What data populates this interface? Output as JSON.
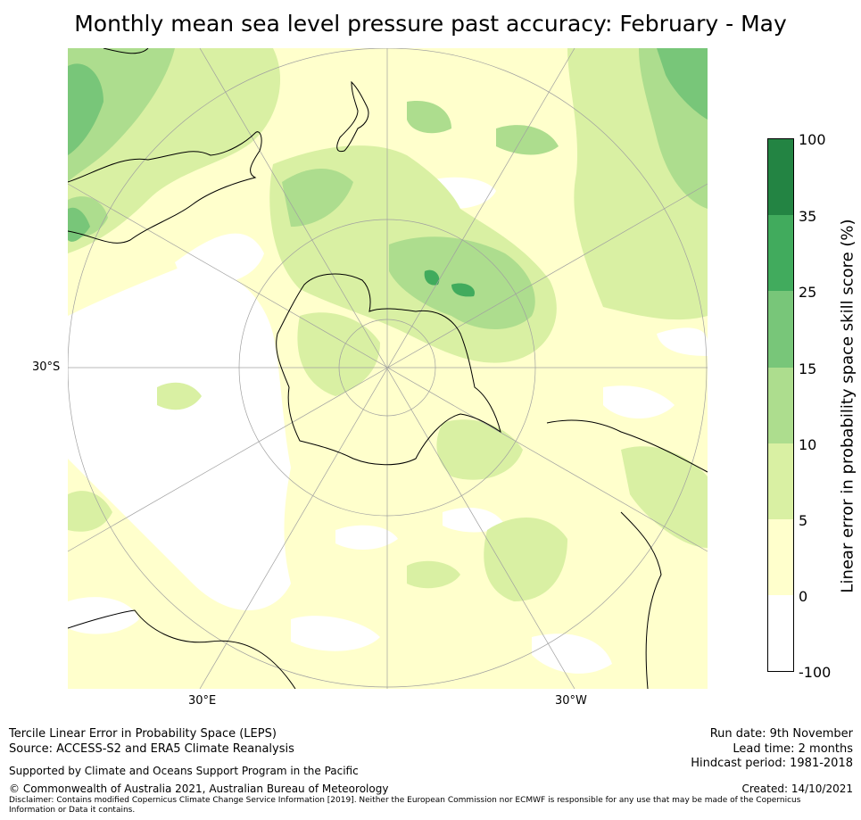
{
  "title": "Monthly mean sea level pressure past accuracy: February - May",
  "map": {
    "projection": "south polar stereographic",
    "lat_label_left": "30°S",
    "lon_label_left": "30°E",
    "lon_label_right": "30°W",
    "colors": {
      "white": "#ffffff",
      "pale_yellow": "#ffffcc",
      "light_green": "#d9f0a3",
      "green_1": "#addd8e",
      "green_2": "#78c679",
      "green_3": "#41ab5d",
      "green_4": "#238443",
      "coast": "#000000",
      "grid": "#a0a0a0"
    }
  },
  "colorbar": {
    "title": "Linear error in probability space skill score (%)",
    "ticks": [
      "100",
      "35",
      "25",
      "15",
      "10",
      "5",
      "0",
      "-100"
    ],
    "colors": [
      "#238443",
      "#41ab5d",
      "#78c679",
      "#addd8e",
      "#d9f0a3",
      "#ffffcc",
      "#ffffff"
    ]
  },
  "footer": {
    "method": "Tercile Linear Error in Probability Space (LEPS)",
    "source": "Source: ACCESS-S2 and ERA5 Climate Reanalysis",
    "support": "Supported by Climate and Oceans Support Program in the Pacific",
    "copyright": "© Commonwealth of Australia 2021, Australian Bureau of Meteorology",
    "disclaimer": "Disclaimer: Contains modified Copernicus Climate Change Service Information [2019]. Neither the European Commission nor ECMWF is responsible for any use that may be made of the Copernicus Information or Data it contains.",
    "run_date": "Run date: 9th November",
    "lead_time": "Lead time: 2 months",
    "hindcast": "Hindcast period: 1981-2018",
    "created": "Created: 14/10/2021"
  }
}
